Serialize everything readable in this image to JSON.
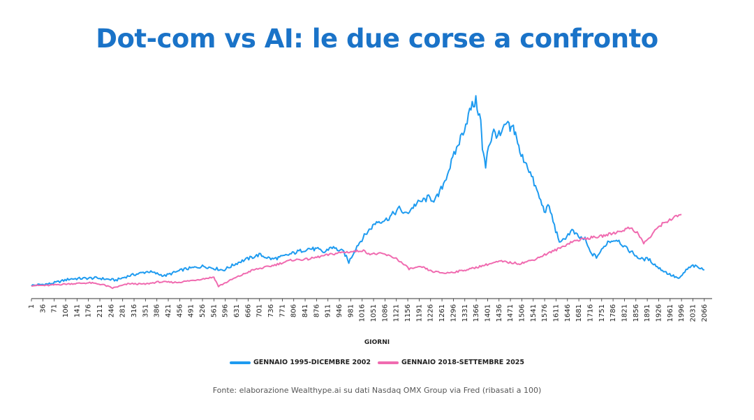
{
  "title": "Dot-com vs AI: le due corse a confronto",
  "source": "Fonte: elaborazione Wealthype.ai su dati Nasdaq OMX Group via Fred (ribasati a 100)",
  "chart_data": {
    "type": "line",
    "xlabel": "GIORNI",
    "ylabel": "",
    "x_ticks": [
      1,
      36,
      71,
      106,
      141,
      176,
      211,
      246,
      281,
      316,
      351,
      386,
      421,
      456,
      491,
      526,
      561,
      596,
      631,
      666,
      701,
      736,
      771,
      806,
      841,
      876,
      911,
      946,
      981,
      1016,
      1051,
      1086,
      1121,
      1156,
      1191,
      1226,
      1261,
      1296,
      1331,
      1366,
      1401,
      1436,
      1471,
      1506,
      1541,
      1576,
      1611,
      1646,
      1681,
      1716,
      1751,
      1786,
      1821,
      1856,
      1891,
      1926,
      1961,
      1996,
      2031,
      2066
    ],
    "xlim": [
      1,
      2090
    ],
    "ylim": [
      70,
      560
    ],
    "grid": false,
    "legend_position": "bottom",
    "series": [
      {
        "name": "GENNAIO 1995-DICEMBRE 2002",
        "color": "#1e9bf0",
        "points": [
          [
            1,
            100
          ],
          [
            60,
            104
          ],
          [
            120,
            115
          ],
          [
            200,
            117
          ],
          [
            260,
            112
          ],
          [
            300,
            122
          ],
          [
            360,
            132
          ],
          [
            410,
            122
          ],
          [
            470,
            137
          ],
          [
            530,
            144
          ],
          [
            590,
            135
          ],
          [
            640,
            154
          ],
          [
            700,
            170
          ],
          [
            740,
            160
          ],
          [
            770,
            165
          ],
          [
            810,
            175
          ],
          [
            850,
            184
          ],
          [
            880,
            182
          ],
          [
            900,
            175
          ],
          [
            920,
            188
          ],
          [
            960,
            176
          ],
          [
            975,
            153
          ],
          [
            1000,
            190
          ],
          [
            1030,
            220
          ],
          [
            1060,
            245
          ],
          [
            1090,
            250
          ],
          [
            1110,
            262
          ],
          [
            1130,
            275
          ],
          [
            1150,
            262
          ],
          [
            1180,
            285
          ],
          [
            1220,
            300
          ],
          [
            1240,
            295
          ],
          [
            1250,
            305
          ],
          [
            1270,
            340
          ],
          [
            1290,
            380
          ],
          [
            1310,
            420
          ],
          [
            1330,
            460
          ],
          [
            1350,
            505
          ],
          [
            1365,
            520
          ],
          [
            1380,
            475
          ],
          [
            1385,
            410
          ],
          [
            1395,
            370
          ],
          [
            1400,
            410
          ],
          [
            1420,
            450
          ],
          [
            1440,
            440
          ],
          [
            1460,
            470
          ],
          [
            1470,
            455
          ],
          [
            1480,
            460
          ],
          [
            1490,
            440
          ],
          [
            1500,
            400
          ],
          [
            1520,
            380
          ],
          [
            1540,
            340
          ],
          [
            1560,
            300
          ],
          [
            1575,
            270
          ],
          [
            1590,
            280
          ],
          [
            1610,
            225
          ],
          [
            1625,
            195
          ],
          [
            1640,
            210
          ],
          [
            1660,
            225
          ],
          [
            1680,
            210
          ],
          [
            1700,
            205
          ],
          [
            1716,
            175
          ],
          [
            1735,
            165
          ],
          [
            1751,
            180
          ],
          [
            1770,
            200
          ],
          [
            1800,
            205
          ],
          [
            1825,
            185
          ],
          [
            1845,
            175
          ],
          [
            1870,
            160
          ],
          [
            1895,
            160
          ],
          [
            1926,
            140
          ],
          [
            1960,
            125
          ],
          [
            1990,
            115
          ],
          [
            2010,
            135
          ],
          [
            2031,
            145
          ],
          [
            2050,
            140
          ],
          [
            2066,
            135
          ]
        ]
      },
      {
        "name": "GENNAIO 2018-SETTEMBRE 2025",
        "color": "#f06bb0",
        "points": [
          [
            1,
            100
          ],
          [
            50,
            100
          ],
          [
            100,
            103
          ],
          [
            180,
            106
          ],
          [
            220,
            102
          ],
          [
            250,
            94
          ],
          [
            300,
            104
          ],
          [
            350,
            103
          ],
          [
            390,
            108
          ],
          [
            450,
            107
          ],
          [
            500,
            112
          ],
          [
            561,
            119
          ],
          [
            575,
            98
          ],
          [
            620,
            115
          ],
          [
            680,
            135
          ],
          [
            740,
            145
          ],
          [
            800,
            158
          ],
          [
            850,
            160
          ],
          [
            900,
            168
          ],
          [
            950,
            175
          ],
          [
            1000,
            178
          ],
          [
            1016,
            180
          ],
          [
            1040,
            172
          ],
          [
            1080,
            172
          ],
          [
            1120,
            162
          ],
          [
            1140,
            150
          ],
          [
            1160,
            138
          ],
          [
            1200,
            142
          ],
          [
            1230,
            132
          ],
          [
            1270,
            128
          ],
          [
            1310,
            132
          ],
          [
            1350,
            138
          ],
          [
            1400,
            148
          ],
          [
            1440,
            155
          ],
          [
            1470,
            152
          ],
          [
            1500,
            150
          ],
          [
            1540,
            158
          ],
          [
            1576,
            170
          ],
          [
            1620,
            184
          ],
          [
            1660,
            200
          ],
          [
            1700,
            207
          ],
          [
            1750,
            212
          ],
          [
            1800,
            222
          ],
          [
            1840,
            232
          ],
          [
            1860,
            220
          ],
          [
            1880,
            197
          ],
          [
            1900,
            210
          ],
          [
            1926,
            235
          ],
          [
            1960,
            250
          ],
          [
            1996,
            262
          ]
        ]
      }
    ]
  }
}
